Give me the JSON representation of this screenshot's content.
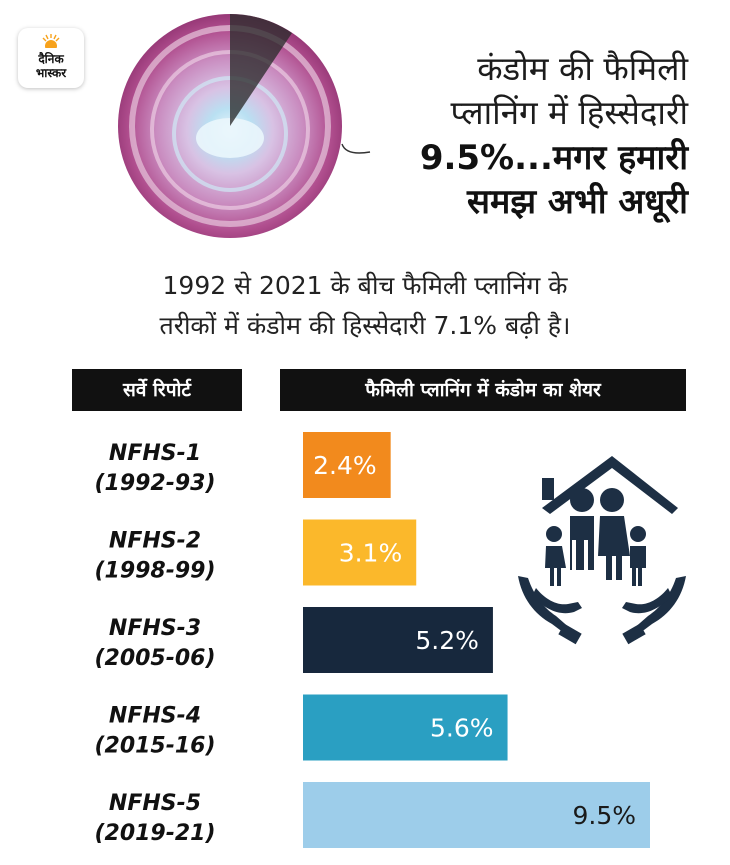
{
  "logo": {
    "line1": "दैनिक",
    "line2": "भास्कर"
  },
  "headline": {
    "line1": "कंडोम की फैमिली",
    "line2": "प्लानिंग में हिस्सेदारी",
    "line3": "9.5%...मगर हमारी",
    "line4": "समझ अभी अधूरी"
  },
  "subtitle": {
    "line1": "1992 से 2021 के बीच फैमिली प्लानिंग के",
    "line2": "तरीकों में कंडोम की हिस्सेदारी 7.1% बढ़ी है।"
  },
  "table_headers": {
    "left": "सर्वे रिपोर्ट",
    "right": "फैमिली प्लानिंग में कंडोम का शेयर"
  },
  "colors": {
    "nfhs1": "#f28a1d",
    "nfhs2": "#fbb82b",
    "nfhs3": "#17283d",
    "nfhs4": "#2a9fc2",
    "nfhs5": "#9dcdea",
    "label_light": "#ffffff",
    "label_dark": "#1a1a1a",
    "icon": "#1d2f44"
  },
  "chart_data": {
    "type": "bar",
    "orientation": "horizontal",
    "title": "फैमिली प्लानिंग में कंडोम का शेयर",
    "categories": [
      {
        "name": "NFHS-1",
        "period": "(1992-93)"
      },
      {
        "name": "NFHS-2",
        "period": "(1998-99)"
      },
      {
        "name": "NFHS-3",
        "period": "(2005-06)"
      },
      {
        "name": "NFHS-4",
        "period": "(2015-16)"
      },
      {
        "name": "NFHS-5",
        "period": "(2019-21)"
      }
    ],
    "values": [
      2.4,
      3.1,
      5.2,
      5.6,
      9.5
    ],
    "labels": [
      "2.4%",
      "3.1%",
      "5.2%",
      "5.6%",
      "9.5%"
    ],
    "unit": "%",
    "xlim": [
      0,
      9.5
    ]
  }
}
